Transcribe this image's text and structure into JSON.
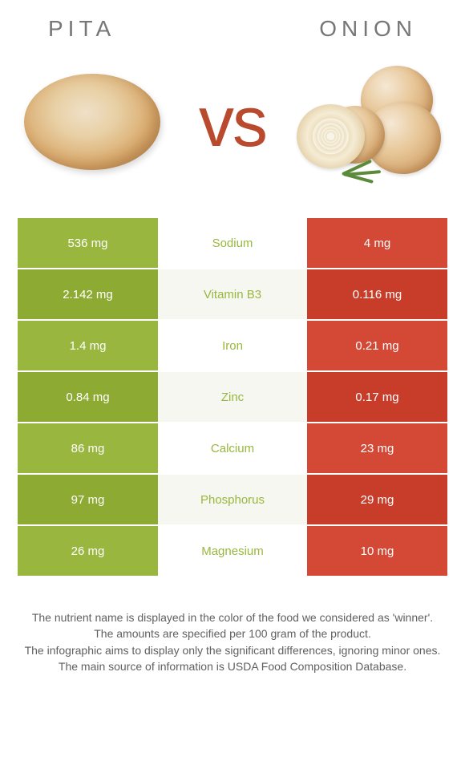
{
  "header": {
    "left": "Pita",
    "right": "Onion"
  },
  "vs_text": "vs",
  "colors": {
    "left_bar": "#99b73e",
    "right_bar": "#d44935",
    "winner_left": "#99b73e",
    "winner_right": "#d44935",
    "row_alt_overlay": "rgba(0,0,0,0.05)"
  },
  "nutrients": [
    {
      "name": "Sodium",
      "left": "536 mg",
      "right": "4 mg",
      "winner": "left",
      "alt": false
    },
    {
      "name": "Vitamin B3",
      "left": "2.142 mg",
      "right": "0.116 mg",
      "winner": "left",
      "alt": true
    },
    {
      "name": "Iron",
      "left": "1.4 mg",
      "right": "0.21 mg",
      "winner": "left",
      "alt": false
    },
    {
      "name": "Zinc",
      "left": "0.84 mg",
      "right": "0.17 mg",
      "winner": "left",
      "alt": true
    },
    {
      "name": "Calcium",
      "left": "86 mg",
      "right": "23 mg",
      "winner": "left",
      "alt": false
    },
    {
      "name": "Phosphorus",
      "left": "97 mg",
      "right": "29 mg",
      "winner": "left",
      "alt": true
    },
    {
      "name": "Magnesium",
      "left": "26 mg",
      "right": "10 mg",
      "winner": "left",
      "alt": false
    }
  ],
  "footer": {
    "l1": "The nutrient name is displayed in the color of the food we considered as 'winner'.",
    "l2": "The amounts are specified per 100 gram of the product.",
    "l3": "The infographic aims to display only the significant differences, ignoring minor ones.",
    "l4": "The main source of information is USDA Food Composition Database."
  }
}
